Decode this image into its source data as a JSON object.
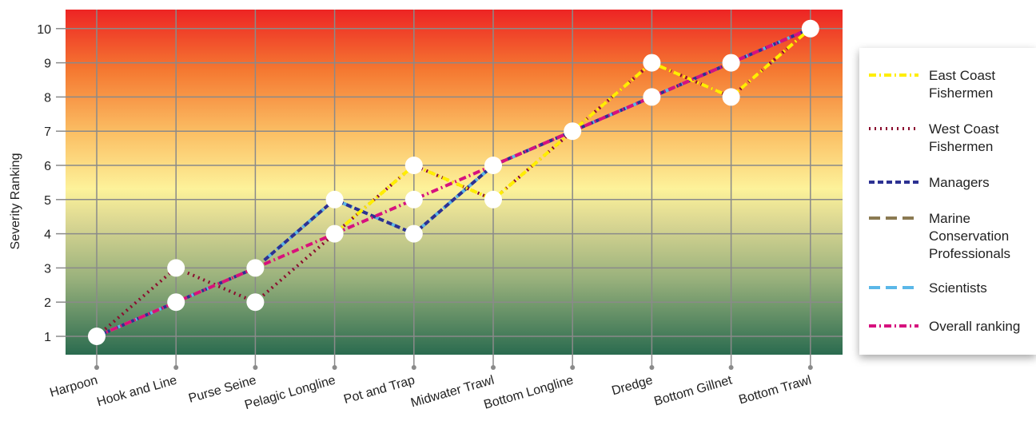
{
  "chart_data": {
    "type": "line",
    "ylabel": "Severity Ranking",
    "xlabel": "",
    "ylim": [
      0.7,
      10.6
    ],
    "yticks": [
      1,
      2,
      3,
      4,
      5,
      6,
      7,
      8,
      9,
      10
    ],
    "categories": [
      "Harpoon",
      "Hook and Line",
      "Purse Seine",
      "Pelagic Longline",
      "Pot and Trap",
      "Midwater Trawl",
      "Bottom Longline",
      "Dredge",
      "Bottom Gillnet",
      "Bottom Trawl"
    ],
    "grid": true,
    "background": "vertical gradient: green (low) to yellow (mid) to red (high)",
    "legend_position": "right",
    "series": [
      {
        "name": "East Coast Fishermen",
        "color": "#ffee00",
        "dash": "dash-dot",
        "values": [
          1,
          2,
          3,
          4,
          6,
          5,
          7,
          9,
          8,
          10
        ]
      },
      {
        "name": "West Coast Fishermen",
        "color": "#8b0d2f",
        "dash": "dotted",
        "values": [
          1,
          3,
          2,
          4,
          6,
          5,
          7,
          9,
          8,
          10
        ]
      },
      {
        "name": "Managers",
        "color": "#2c3192",
        "dash": "dashed",
        "values": [
          1,
          2,
          3,
          5,
          4,
          6,
          7,
          8,
          9,
          10
        ]
      },
      {
        "name": "Marine Conservation Professionals",
        "color": "#8b7a52",
        "dash": "long-dash",
        "values": [
          1,
          2,
          3,
          5,
          4,
          6,
          7,
          8,
          9,
          10
        ]
      },
      {
        "name": "Scientists",
        "color": "#5bb7e8",
        "dash": "long-dash",
        "values": [
          1,
          2,
          3,
          5,
          4,
          6,
          7,
          8,
          9,
          10
        ]
      },
      {
        "name": "Overall ranking",
        "color": "#d6117e",
        "dash": "dash-dot",
        "values": [
          1,
          2,
          3,
          4,
          5,
          6,
          7,
          8,
          9,
          10
        ]
      }
    ],
    "markers": [
      {
        "category": "Harpoon",
        "y": 1
      },
      {
        "category": "Hook and Line",
        "y": 3
      },
      {
        "category": "Hook and Line",
        "y": 2
      },
      {
        "category": "Purse Seine",
        "y": 3
      },
      {
        "category": "Purse Seine",
        "y": 2
      },
      {
        "category": "Pelagic Longline",
        "y": 5
      },
      {
        "category": "Pelagic Longline",
        "y": 4
      },
      {
        "category": "Pot and Trap",
        "y": 6
      },
      {
        "category": "Pot and Trap",
        "y": 5
      },
      {
        "category": "Pot and Trap",
        "y": 4
      },
      {
        "category": "Midwater Trawl",
        "y": 6
      },
      {
        "category": "Midwater Trawl",
        "y": 5
      },
      {
        "category": "Bottom Longline",
        "y": 7
      },
      {
        "category": "Dredge",
        "y": 9
      },
      {
        "category": "Dredge",
        "y": 8
      },
      {
        "category": "Bottom Gillnet",
        "y": 9
      },
      {
        "category": "Bottom Gillnet",
        "y": 8
      },
      {
        "category": "Bottom Trawl",
        "y": 10
      }
    ]
  },
  "legend": {
    "items": [
      {
        "lines": [
          "East Coast",
          "Fishermen"
        ]
      },
      {
        "lines": [
          "West Coast",
          "Fishermen"
        ]
      },
      {
        "lines": [
          "Managers"
        ]
      },
      {
        "lines": [
          "Marine",
          "Conservation",
          "Professionals"
        ]
      },
      {
        "lines": [
          "Scientists"
        ]
      },
      {
        "lines": [
          "Overall ranking"
        ]
      }
    ]
  }
}
